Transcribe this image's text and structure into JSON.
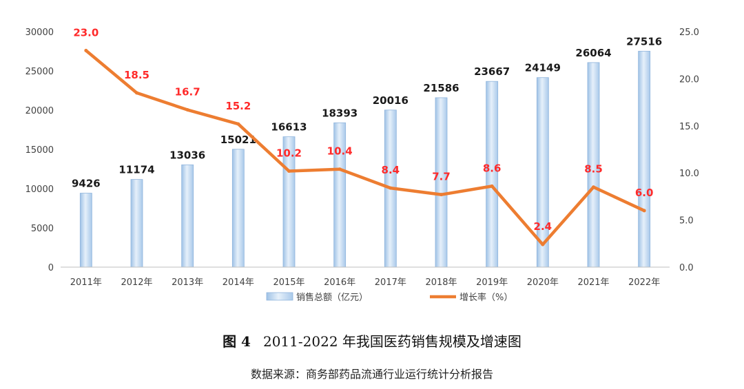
{
  "chart_data": {
    "type": "bar+line",
    "categories": [
      "2011年",
      "2012年",
      "2013年",
      "2014年",
      "2015年",
      "2016年",
      "2017年",
      "2018年",
      "2019年",
      "2020年",
      "2021年",
      "2022年"
    ],
    "series": [
      {
        "name": "销售总额（亿元）",
        "type": "bar",
        "axis": "left",
        "values": [
          9426,
          11174,
          13036,
          15021,
          16613,
          18393,
          20016,
          21586,
          23667,
          24149,
          26064,
          27516
        ],
        "color": "#bcd6ef"
      },
      {
        "name": "增长率（%）",
        "type": "line",
        "axis": "right",
        "values": [
          23.0,
          18.5,
          16.7,
          15.2,
          10.2,
          10.4,
          8.4,
          7.7,
          8.6,
          2.4,
          8.5,
          6.0
        ],
        "color": "#ed7d31"
      }
    ],
    "y_left": {
      "min": 0,
      "max": 30000,
      "ticks": [
        "0",
        "5000",
        "10000",
        "15000",
        "20000",
        "25000",
        "30000"
      ]
    },
    "y_right": {
      "min": 0,
      "max": 25,
      "ticks": [
        "0.0",
        "5.0",
        "10.0",
        "15.0",
        "20.0",
        "25.0"
      ]
    },
    "bar_labels": [
      "9426",
      "11174",
      "13036",
      "15021",
      "16613",
      "18393",
      "20016",
      "21586",
      "23667",
      "24149",
      "26064",
      "27516"
    ],
    "rate_labels": [
      "23.0",
      "18.5",
      "16.7",
      "15.2",
      "10.2",
      "10.4",
      "8.4",
      "7.7",
      "8.6",
      "2.4",
      "8.5",
      "6.0"
    ],
    "legend": [
      "销售总额（亿元）",
      "增长率（%）"
    ],
    "legend_position": "bottom",
    "grid": false
  },
  "caption": {
    "fig_no": "图 4",
    "title": "2011-2022 年我国医药销售规模及增速图",
    "source": "数据来源：商务部药品流通行业运行统计分析报告"
  }
}
